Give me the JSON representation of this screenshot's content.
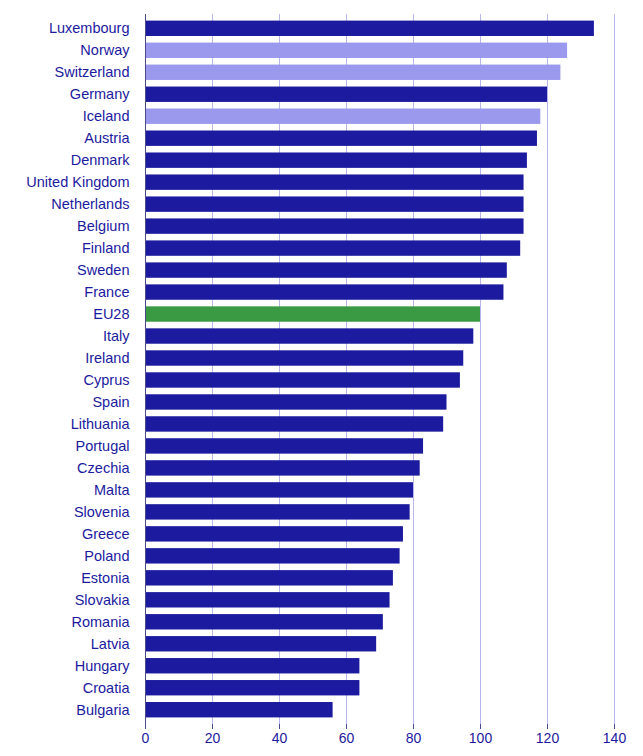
{
  "chart_data": {
    "type": "bar",
    "orientation": "horizontal",
    "categories": [
      "Luxembourg",
      "Norway",
      "Switzerland",
      "Germany",
      "Iceland",
      "Austria",
      "Denmark",
      "United Kingdom",
      "Netherlands",
      "Belgium",
      "Finland",
      "Sweden",
      "France",
      "EU28",
      "Italy",
      "Ireland",
      "Cyprus",
      "Spain",
      "Lithuania",
      "Portugal",
      "Czechia",
      "Malta",
      "Slovenia",
      "Greece",
      "Poland",
      "Estonia",
      "Slovakia",
      "Romania",
      "Latvia",
      "Hungary",
      "Croatia",
      "Bulgaria"
    ],
    "values": [
      134,
      126,
      124,
      120,
      118,
      117,
      114,
      113,
      113,
      113,
      112,
      108,
      107,
      100,
      98,
      95,
      94,
      90,
      89,
      83,
      82,
      80,
      79,
      77,
      76,
      74,
      73,
      71,
      69,
      64,
      64,
      56
    ],
    "colors": [
      "#1c1a9e",
      "#9a99ee",
      "#9a99ee",
      "#1c1a9e",
      "#9a99ee",
      "#1c1a9e",
      "#1c1a9e",
      "#1c1a9e",
      "#1c1a9e",
      "#1c1a9e",
      "#1c1a9e",
      "#1c1a9e",
      "#1c1a9e",
      "#3a9a44",
      "#1c1a9e",
      "#1c1a9e",
      "#1c1a9e",
      "#1c1a9e",
      "#1c1a9e",
      "#1c1a9e",
      "#1c1a9e",
      "#1c1a9e",
      "#1c1a9e",
      "#1c1a9e",
      "#1c1a9e",
      "#1c1a9e",
      "#1c1a9e",
      "#1c1a9e",
      "#1c1a9e",
      "#1c1a9e",
      "#1c1a9e",
      "#1c1a9e"
    ],
    "xlim": [
      0,
      140
    ],
    "xticks": [
      0,
      20,
      40,
      60,
      80,
      100,
      120,
      140
    ],
    "grid": true
  }
}
